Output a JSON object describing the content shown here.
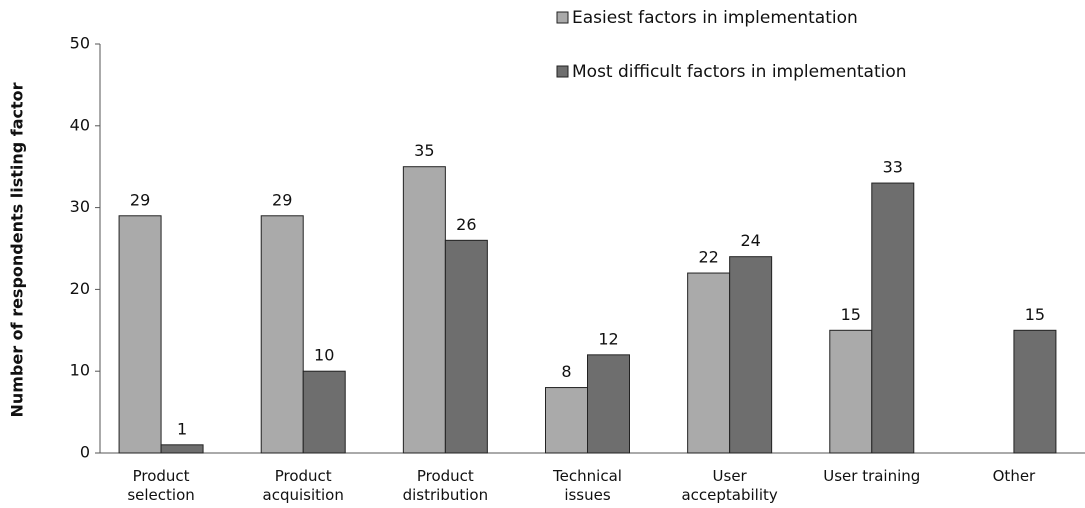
{
  "chart_data": {
    "type": "bar",
    "y_label": "Number of respondents listing factor",
    "categories": [
      "Product selection",
      "Product acquisition",
      "Product distribution",
      "Technical issues",
      "User acceptability",
      "User training",
      "Other"
    ],
    "series": [
      {
        "name": "Easiest factors in implementation",
        "color": "#aaaaaa",
        "values": [
          29,
          29,
          35,
          8,
          22,
          15,
          null
        ]
      },
      {
        "name": "Most difficult factors in implementation",
        "color": "#6e6e6e",
        "values": [
          1,
          10,
          26,
          12,
          24,
          33,
          15
        ]
      }
    ],
    "ylim": [
      0,
      50
    ],
    "yticks": [
      0,
      10,
      20,
      30,
      40,
      50
    ],
    "grid": false,
    "legend": "top-right"
  }
}
